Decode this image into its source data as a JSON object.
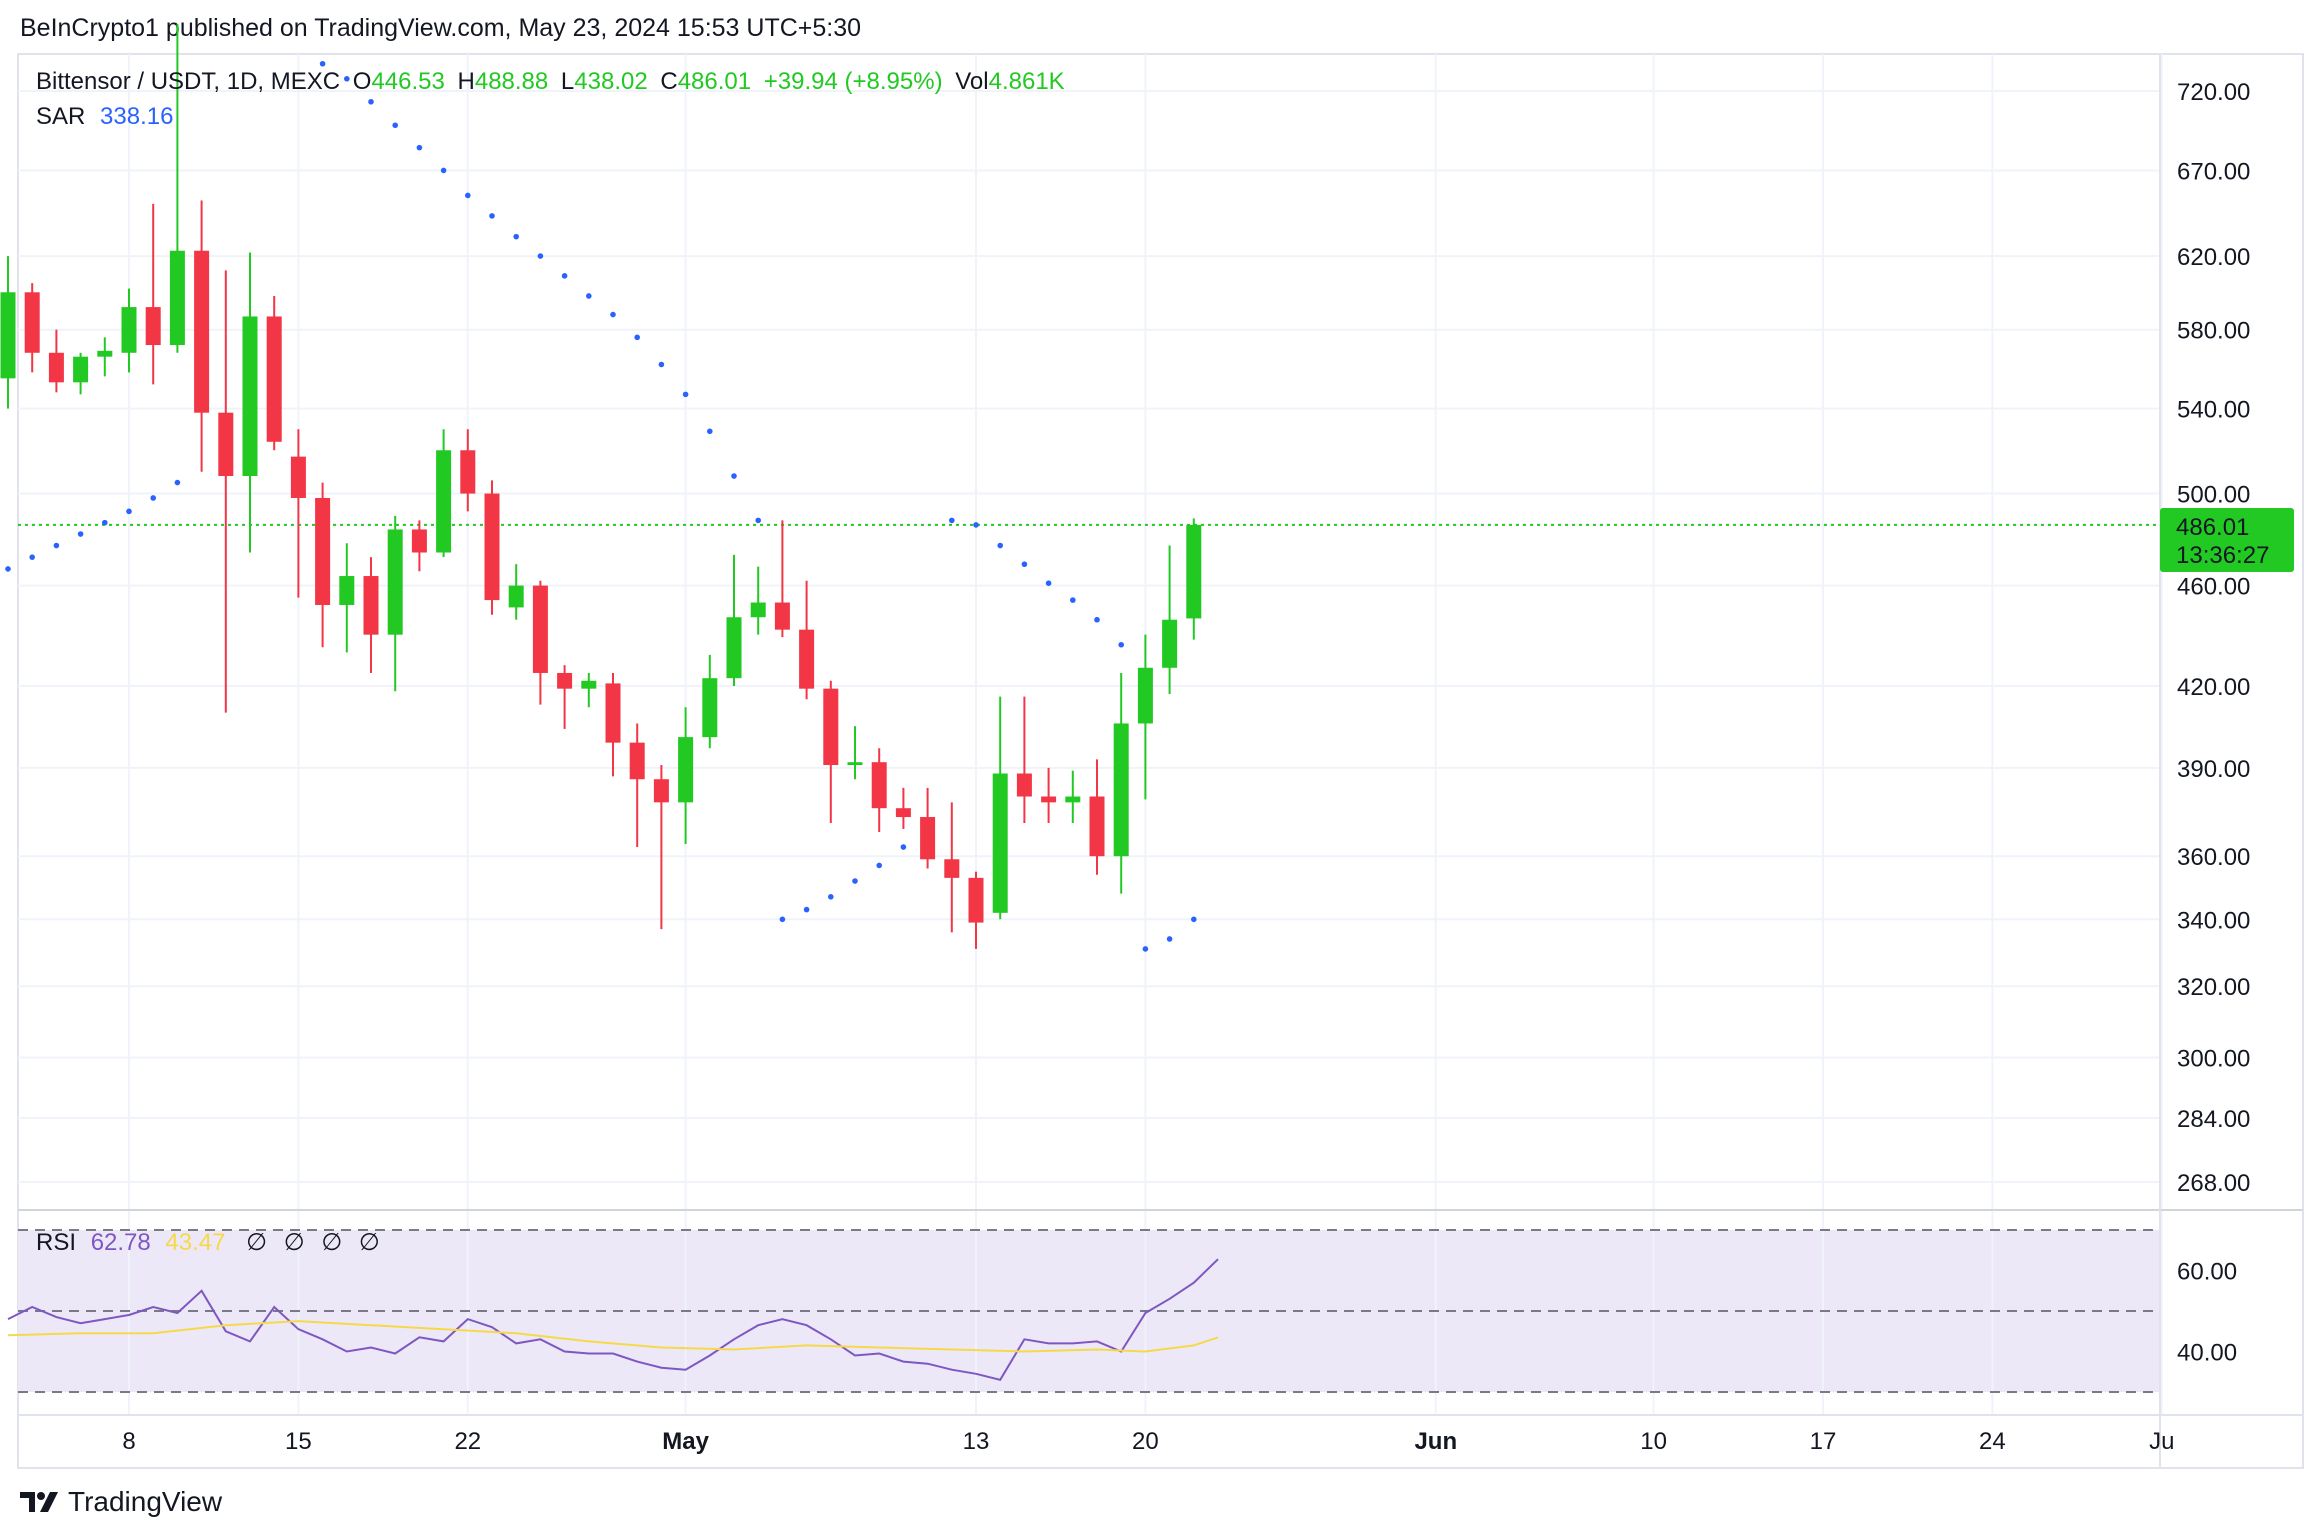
{
  "header": {
    "publisher_line": "BeInCrypto1 published on TradingView.com, May 23, 2024 15:53 UTC+5:30"
  },
  "legend": {
    "symbol": "Bittensor / USDT, 1D, MEXC",
    "open_label": "O",
    "open": "446.53",
    "high_label": "H",
    "high": "488.88",
    "low_label": "L",
    "low": "438.02",
    "close_label": "C",
    "close": "486.01",
    "change": "+39.94 (+8.95%)",
    "vol_label": "Vol",
    "vol": "4.861K",
    "sar_label": "SAR",
    "sar_value": "338.16"
  },
  "price_tag": {
    "price": "486.01",
    "countdown": "13:36:27"
  },
  "rsi_legend": {
    "label": "RSI",
    "rsi_value": "62.78",
    "ma_value": "43.47",
    "na_marks": [
      "∅",
      "∅",
      "∅",
      "∅"
    ]
  },
  "footer": {
    "brand": "TradingView"
  },
  "colors": {
    "up": "#22c922",
    "down": "#f23645",
    "sar": "#2962ff",
    "rsi_line": "#7e57c2",
    "rsi_ma": "#f5d94a",
    "rsi_band": "#ede8f7",
    "grid": "#f0f3fa"
  },
  "chart_data": [
    {
      "type": "candlestick",
      "title": "Bittensor / USDT, 1D, MEXC",
      "y_scale": "log",
      "ylim": [
        255,
        760
      ],
      "y_ticks": [
        "720.00",
        "670.00",
        "620.00",
        "580.00",
        "540.00",
        "500.00",
        "460.00",
        "420.00",
        "390.00",
        "360.00",
        "340.00",
        "320.00",
        "300.00",
        "284.00",
        "268.00"
      ],
      "x_ticks": [
        "8",
        "15",
        "22",
        "May",
        "13",
        "20",
        "Jun",
        "10",
        "17",
        "24",
        "Ju"
      ],
      "last_price": 486.01,
      "candles": [
        {
          "date": "2024-04-03",
          "o": 555,
          "h": 620,
          "l": 540,
          "c": 600
        },
        {
          "date": "2024-04-04",
          "o": 600,
          "h": 605,
          "l": 558,
          "c": 568
        },
        {
          "date": "2024-04-05",
          "o": 568,
          "h": 580,
          "l": 548,
          "c": 553
        },
        {
          "date": "2024-04-06",
          "o": 553,
          "h": 568,
          "l": 547,
          "c": 566
        },
        {
          "date": "2024-04-07",
          "o": 566,
          "h": 576,
          "l": 556,
          "c": 569
        },
        {
          "date": "2024-04-08",
          "o": 568,
          "h": 602,
          "l": 558,
          "c": 592
        },
        {
          "date": "2024-04-09",
          "o": 592,
          "h": 650,
          "l": 552,
          "c": 572
        },
        {
          "date": "2024-04-10",
          "o": 572,
          "h": 765,
          "l": 568,
          "c": 623
        },
        {
          "date": "2024-04-11",
          "o": 623,
          "h": 652,
          "l": 510,
          "c": 538
        },
        {
          "date": "2024-04-12",
          "o": 538,
          "h": 612,
          "l": 410,
          "c": 508
        },
        {
          "date": "2024-04-13",
          "o": 508,
          "h": 622,
          "l": 474,
          "c": 587
        },
        {
          "date": "2024-04-14",
          "o": 587,
          "h": 598,
          "l": 520,
          "c": 524
        },
        {
          "date": "2024-04-15",
          "o": 517,
          "h": 530,
          "l": 455,
          "c": 498
        },
        {
          "date": "2024-04-16",
          "o": 498,
          "h": 505,
          "l": 435,
          "c": 452
        },
        {
          "date": "2024-04-17",
          "o": 452,
          "h": 478,
          "l": 433,
          "c": 464
        },
        {
          "date": "2024-04-18",
          "o": 464,
          "h": 472,
          "l": 425,
          "c": 440
        },
        {
          "date": "2024-04-19",
          "o": 440,
          "h": 490,
          "l": 418,
          "c": 484
        },
        {
          "date": "2024-04-20",
          "o": 484,
          "h": 488,
          "l": 466,
          "c": 474
        },
        {
          "date": "2024-04-21",
          "o": 474,
          "h": 530,
          "l": 472,
          "c": 520
        },
        {
          "date": "2024-04-22",
          "o": 520,
          "h": 530,
          "l": 492,
          "c": 500
        },
        {
          "date": "2024-04-23",
          "o": 500,
          "h": 506,
          "l": 448,
          "c": 454
        },
        {
          "date": "2024-04-24",
          "o": 451,
          "h": 469,
          "l": 446,
          "c": 460
        },
        {
          "date": "2024-04-25",
          "o": 460,
          "h": 462,
          "l": 413,
          "c": 425
        },
        {
          "date": "2024-04-26",
          "o": 425,
          "h": 428,
          "l": 404,
          "c": 419
        },
        {
          "date": "2024-04-27",
          "o": 419,
          "h": 425,
          "l": 412,
          "c": 422
        },
        {
          "date": "2024-04-28",
          "o": 421,
          "h": 425,
          "l": 387,
          "c": 399
        },
        {
          "date": "2024-04-29",
          "o": 399,
          "h": 406,
          "l": 363,
          "c": 386
        },
        {
          "date": "2024-04-30",
          "o": 386,
          "h": 391,
          "l": 337,
          "c": 378
        },
        {
          "date": "2024-05-01",
          "o": 378,
          "h": 412,
          "l": 364,
          "c": 401
        },
        {
          "date": "2024-05-02",
          "o": 401,
          "h": 432,
          "l": 397,
          "c": 423
        },
        {
          "date": "2024-05-03",
          "o": 423,
          "h": 473,
          "l": 420,
          "c": 447
        },
        {
          "date": "2024-05-04",
          "o": 447,
          "h": 468,
          "l": 440,
          "c": 453
        },
        {
          "date": "2024-05-05",
          "o": 453,
          "h": 488,
          "l": 439,
          "c": 442
        },
        {
          "date": "2024-05-06",
          "o": 442,
          "h": 462,
          "l": 415,
          "c": 419
        },
        {
          "date": "2024-05-07",
          "o": 419,
          "h": 422,
          "l": 371,
          "c": 391
        },
        {
          "date": "2024-05-08",
          "o": 391,
          "h": 405,
          "l": 386,
          "c": 392
        },
        {
          "date": "2024-05-09",
          "o": 392,
          "h": 397,
          "l": 368,
          "c": 376
        },
        {
          "date": "2024-05-10",
          "o": 376,
          "h": 383,
          "l": 369,
          "c": 373
        },
        {
          "date": "2024-05-11",
          "o": 373,
          "h": 383,
          "l": 356,
          "c": 359
        },
        {
          "date": "2024-05-12",
          "o": 359,
          "h": 378,
          "l": 336,
          "c": 353
        },
        {
          "date": "2024-05-13",
          "o": 353,
          "h": 355,
          "l": 331,
          "c": 339
        },
        {
          "date": "2024-05-14",
          "o": 342,
          "h": 416,
          "l": 340,
          "c": 388
        },
        {
          "date": "2024-05-15",
          "o": 388,
          "h": 416,
          "l": 371,
          "c": 380
        },
        {
          "date": "2024-05-16",
          "o": 380,
          "h": 390,
          "l": 371,
          "c": 378
        },
        {
          "date": "2024-05-17",
          "o": 378,
          "h": 389,
          "l": 371,
          "c": 380
        },
        {
          "date": "2024-05-18",
          "o": 380,
          "h": 393,
          "l": 354,
          "c": 360
        },
        {
          "date": "2024-05-19",
          "o": 360,
          "h": 425,
          "l": 348,
          "c": 406
        },
        {
          "date": "2024-05-20",
          "o": 406,
          "h": 440,
          "l": 379,
          "c": 427
        },
        {
          "date": "2024-05-21",
          "o": 427,
          "h": 477,
          "l": 417,
          "c": 446
        },
        {
          "date": "2024-05-22",
          "o": 446.53,
          "h": 488.88,
          "l": 438.02,
          "c": 486.01
        }
      ],
      "sar": [
        {
          "date": "2024-04-03",
          "v": 467
        },
        {
          "date": "2024-04-04",
          "v": 472
        },
        {
          "date": "2024-04-05",
          "v": 477
        },
        {
          "date": "2024-04-06",
          "v": 482
        },
        {
          "date": "2024-04-07",
          "v": 487
        },
        {
          "date": "2024-04-08",
          "v": 492
        },
        {
          "date": "2024-04-09",
          "v": 498
        },
        {
          "date": "2024-04-10",
          "v": 505
        },
        {
          "date": "2024-04-16",
          "v": 738
        },
        {
          "date": "2024-04-17",
          "v": 728
        },
        {
          "date": "2024-04-18",
          "v": 713
        },
        {
          "date": "2024-04-19",
          "v": 698
        },
        {
          "date": "2024-04-20",
          "v": 684
        },
        {
          "date": "2024-04-21",
          "v": 670
        },
        {
          "date": "2024-04-22",
          "v": 655
        },
        {
          "date": "2024-04-23",
          "v": 643
        },
        {
          "date": "2024-04-24",
          "v": 631
        },
        {
          "date": "2024-04-25",
          "v": 620
        },
        {
          "date": "2024-04-26",
          "v": 609
        },
        {
          "date": "2024-04-27",
          "v": 598
        },
        {
          "date": "2024-04-28",
          "v": 588
        },
        {
          "date": "2024-04-29",
          "v": 576
        },
        {
          "date": "2024-04-30",
          "v": 562
        },
        {
          "date": "2024-05-01",
          "v": 547
        },
        {
          "date": "2024-05-02",
          "v": 529
        },
        {
          "date": "2024-05-03",
          "v": 508
        },
        {
          "date": "2024-05-04",
          "v": 488
        },
        {
          "date": "2024-05-05",
          "v": 340
        },
        {
          "date": "2024-05-06",
          "v": 343
        },
        {
          "date": "2024-05-07",
          "v": 347
        },
        {
          "date": "2024-05-08",
          "v": 352
        },
        {
          "date": "2024-05-09",
          "v": 357
        },
        {
          "date": "2024-05-10",
          "v": 363
        },
        {
          "date": "2024-05-11",
          "v": 369
        },
        {
          "date": "2024-05-12",
          "v": 488
        },
        {
          "date": "2024-05-13",
          "v": 486
        },
        {
          "date": "2024-05-14",
          "v": 477
        },
        {
          "date": "2024-05-15",
          "v": 469
        },
        {
          "date": "2024-05-16",
          "v": 461
        },
        {
          "date": "2024-05-17",
          "v": 454
        },
        {
          "date": "2024-05-18",
          "v": 446
        },
        {
          "date": "2024-05-19",
          "v": 436
        },
        {
          "date": "2024-05-20",
          "v": 331
        },
        {
          "date": "2024-05-21",
          "v": 334
        },
        {
          "date": "2024-05-22",
          "v": 340
        }
      ]
    },
    {
      "type": "line",
      "title": "RSI",
      "ylim": [
        30,
        70
      ],
      "y_ticks": [
        "60.00",
        "40.00"
      ],
      "bands": [
        30,
        50,
        70
      ],
      "series": [
        {
          "name": "RSI",
          "values": [
            {
              "date": "2024-04-03",
              "v": 48
            },
            {
              "date": "2024-04-04",
              "v": 51
            },
            {
              "date": "2024-04-05",
              "v": 48.5
            },
            {
              "date": "2024-04-06",
              "v": 47
            },
            {
              "date": "2024-04-07",
              "v": 48
            },
            {
              "date": "2024-04-08",
              "v": 49
            },
            {
              "date": "2024-04-09",
              "v": 51
            },
            {
              "date": "2024-04-10",
              "v": 49.5
            },
            {
              "date": "2024-04-11",
              "v": 55
            },
            {
              "date": "2024-04-12",
              "v": 45
            },
            {
              "date": "2024-04-13",
              "v": 42.5
            },
            {
              "date": "2024-04-14",
              "v": 51
            },
            {
              "date": "2024-04-15",
              "v": 45.5
            },
            {
              "date": "2024-04-16",
              "v": 43
            },
            {
              "date": "2024-04-17",
              "v": 40
            },
            {
              "date": "2024-04-18",
              "v": 41
            },
            {
              "date": "2024-04-19",
              "v": 39.5
            },
            {
              "date": "2024-04-20",
              "v": 43.5
            },
            {
              "date": "2024-04-21",
              "v": 42.5
            },
            {
              "date": "2024-04-22",
              "v": 48
            },
            {
              "date": "2024-04-23",
              "v": 46
            },
            {
              "date": "2024-04-24",
              "v": 42
            },
            {
              "date": "2024-04-25",
              "v": 43
            },
            {
              "date": "2024-04-26",
              "v": 40
            },
            {
              "date": "2024-04-27",
              "v": 39.5
            },
            {
              "date": "2024-04-28",
              "v": 39.5
            },
            {
              "date": "2024-04-29",
              "v": 37.5
            },
            {
              "date": "2024-04-30",
              "v": 36
            },
            {
              "date": "2024-05-01",
              "v": 35.5
            },
            {
              "date": "2024-05-02",
              "v": 39
            },
            {
              "date": "2024-05-03",
              "v": 43
            },
            {
              "date": "2024-05-04",
              "v": 46.5
            },
            {
              "date": "2024-05-05",
              "v": 48
            },
            {
              "date": "2024-05-06",
              "v": 46.5
            },
            {
              "date": "2024-05-07",
              "v": 43
            },
            {
              "date": "2024-05-08",
              "v": 39
            },
            {
              "date": "2024-05-09",
              "v": 39.5
            },
            {
              "date": "2024-05-10",
              "v": 37.5
            },
            {
              "date": "2024-05-11",
              "v": 37
            },
            {
              "date": "2024-05-12",
              "v": 35.5
            },
            {
              "date": "2024-05-13",
              "v": 34.5
            },
            {
              "date": "2024-05-14",
              "v": 33
            },
            {
              "date": "2024-05-15",
              "v": 43
            },
            {
              "date": "2024-05-16",
              "v": 42
            },
            {
              "date": "2024-05-17",
              "v": 42
            },
            {
              "date": "2024-05-18",
              "v": 42.5
            },
            {
              "date": "2024-05-19",
              "v": 40
            },
            {
              "date": "2024-05-20",
              "v": 49.5
            },
            {
              "date": "2024-05-21",
              "v": 53
            },
            {
              "date": "2024-05-22",
              "v": 57
            },
            {
              "date": "2024-05-23",
              "v": 62.78
            }
          ]
        },
        {
          "name": "RSI-based MA",
          "values": [
            {
              "date": "2024-04-03",
              "v": 44
            },
            {
              "date": "2024-04-06",
              "v": 44.5
            },
            {
              "date": "2024-04-09",
              "v": 44.5
            },
            {
              "date": "2024-04-12",
              "v": 46.5
            },
            {
              "date": "2024-04-15",
              "v": 47.5
            },
            {
              "date": "2024-04-18",
              "v": 46.5
            },
            {
              "date": "2024-04-21",
              "v": 45.5
            },
            {
              "date": "2024-04-24",
              "v": 44.5
            },
            {
              "date": "2024-04-27",
              "v": 42.5
            },
            {
              "date": "2024-04-30",
              "v": 41
            },
            {
              "date": "2024-05-03",
              "v": 40.5
            },
            {
              "date": "2024-05-06",
              "v": 41.5
            },
            {
              "date": "2024-05-09",
              "v": 41
            },
            {
              "date": "2024-05-12",
              "v": 40.5
            },
            {
              "date": "2024-05-15",
              "v": 40
            },
            {
              "date": "2024-05-18",
              "v": 40.5
            },
            {
              "date": "2024-05-20",
              "v": 40
            },
            {
              "date": "2024-05-22",
              "v": 41.5
            },
            {
              "date": "2024-05-23",
              "v": 43.47
            }
          ]
        }
      ]
    }
  ]
}
